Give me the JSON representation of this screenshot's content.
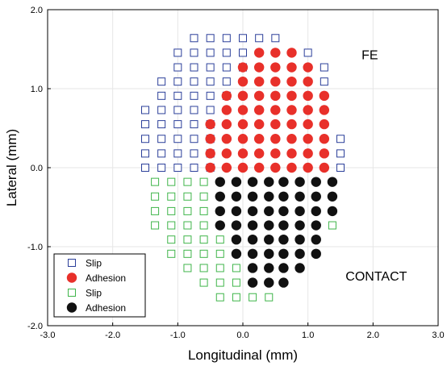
{
  "chart_data": {
    "type": "scatter",
    "title": "",
    "xlabel": "Longitudinal (mm)",
    "ylabel": "Lateral (mm)",
    "xlim": [
      -3.0,
      3.0
    ],
    "ylim": [
      -2.0,
      2.0
    ],
    "xticks": [
      "-3.0",
      "-2.0",
      "-1.0",
      "0.0",
      "1.0",
      "2.0",
      "3.0"
    ],
    "yticks": [
      "-2.0",
      "-1.0",
      "0.0",
      "1.0",
      "2.0"
    ],
    "grid": true,
    "legend_position": "bottom-left",
    "annotations": [
      {
        "text": "FE",
        "x": 1.95,
        "y": 1.37
      },
      {
        "text": "CONTACT",
        "x": 2.05,
        "y": -1.43
      }
    ],
    "series": [
      {
        "name": "Slip",
        "marker": "open-square",
        "color": "#2b3f9a",
        "rows": [
          {
            "y": 1.64,
            "x": [
              -0.75,
              -0.5,
              -0.25,
              0.0,
              0.25,
              0.5
            ]
          },
          {
            "y": 1.455,
            "x": [
              -1.0,
              -0.75,
              -0.5,
              -0.25,
              0.0,
              1.0
            ]
          },
          {
            "y": 1.27,
            "x": [
              -1.0,
              -0.75,
              -0.5,
              -0.25,
              0.0,
              1.25
            ]
          },
          {
            "y": 1.09,
            "x": [
              -1.25,
              -1.0,
              -0.75,
              -0.5,
              -0.25,
              1.25
            ]
          },
          {
            "y": 0.91,
            "x": [
              -1.25,
              -1.0,
              -0.75,
              -0.5,
              -0.25
            ]
          },
          {
            "y": 0.73,
            "x": [
              -1.5,
              -1.25,
              -1.0,
              -0.75,
              -0.5
            ]
          },
          {
            "y": 0.55,
            "x": [
              -1.5,
              -1.25,
              -1.0,
              -0.75,
              -0.5
            ]
          },
          {
            "y": 0.365,
            "x": [
              -1.5,
              -1.25,
              -1.0,
              -0.75,
              -0.5,
              1.5
            ]
          },
          {
            "y": 0.18,
            "x": [
              -1.5,
              -1.25,
              -1.0,
              -0.75,
              -0.5,
              1.5
            ]
          },
          {
            "y": 0.0,
            "x": [
              -1.5,
              -1.25,
              -1.0,
              -0.75,
              -0.5,
              1.5
            ]
          }
        ]
      },
      {
        "name": "Adhesion",
        "marker": "filled-circle",
        "color": "#e8302a",
        "rows": [
          {
            "y": 1.455,
            "x": [
              0.25,
              0.5,
              0.75
            ]
          },
          {
            "y": 1.27,
            "x": [
              0.0,
              0.25,
              0.5,
              0.75,
              1.0
            ]
          },
          {
            "y": 1.09,
            "x": [
              0.0,
              0.25,
              0.5,
              0.75,
              1.0
            ]
          },
          {
            "y": 0.91,
            "x": [
              -0.25,
              0.0,
              0.25,
              0.5,
              0.75,
              1.0,
              1.25
            ]
          },
          {
            "y": 0.73,
            "x": [
              -0.25,
              0.0,
              0.25,
              0.5,
              0.75,
              1.0,
              1.25
            ]
          },
          {
            "y": 0.55,
            "x": [
              -0.5,
              -0.25,
              0.0,
              0.25,
              0.5,
              0.75,
              1.0,
              1.25
            ]
          },
          {
            "y": 0.365,
            "x": [
              -0.5,
              -0.25,
              0.0,
              0.25,
              0.5,
              0.75,
              1.0,
              1.25
            ]
          },
          {
            "y": 0.18,
            "x": [
              -0.5,
              -0.25,
              0.0,
              0.25,
              0.5,
              0.75,
              1.0,
              1.25
            ]
          },
          {
            "y": 0.0,
            "x": [
              -0.5,
              -0.25,
              0.0,
              0.25,
              0.5,
              0.75,
              1.0,
              1.25
            ]
          }
        ]
      },
      {
        "name": "Slip",
        "marker": "open-square",
        "color": "#3fb54a",
        "rows": [
          {
            "y": -0.18,
            "x": [
              -1.35,
              -1.1,
              -0.85,
              -0.6
            ]
          },
          {
            "y": -0.365,
            "x": [
              -1.35,
              -1.1,
              -0.85,
              -0.6
            ]
          },
          {
            "y": -0.55,
            "x": [
              -1.35,
              -1.1,
              -0.85,
              -0.6
            ]
          },
          {
            "y": -0.73,
            "x": [
              -1.35,
              -1.1,
              -0.85,
              -0.6,
              1.375
            ]
          },
          {
            "y": -0.91,
            "x": [
              -1.1,
              -0.85,
              -0.6,
              -0.35
            ]
          },
          {
            "y": -1.09,
            "x": [
              -1.1,
              -0.85,
              -0.6,
              -0.35
            ]
          },
          {
            "y": -1.27,
            "x": [
              -0.85,
              -0.6,
              -0.35,
              -0.1
            ]
          },
          {
            "y": -1.455,
            "x": [
              -0.6,
              -0.35,
              -0.1
            ]
          },
          {
            "y": -1.64,
            "x": [
              -0.35,
              -0.1,
              0.15,
              0.4
            ]
          }
        ]
      },
      {
        "name": "Adhesion",
        "marker": "filled-circle",
        "color": "#111111",
        "rows": [
          {
            "y": -0.18,
            "x": [
              -0.35,
              -0.1,
              0.15,
              0.4,
              0.625,
              0.875,
              1.125,
              1.375
            ]
          },
          {
            "y": -0.365,
            "x": [
              -0.35,
              -0.1,
              0.15,
              0.4,
              0.625,
              0.875,
              1.125,
              1.375
            ]
          },
          {
            "y": -0.55,
            "x": [
              -0.35,
              -0.1,
              0.15,
              0.4,
              0.625,
              0.875,
              1.125,
              1.375
            ]
          },
          {
            "y": -0.73,
            "x": [
              -0.35,
              -0.1,
              0.15,
              0.4,
              0.625,
              0.875,
              1.125
            ]
          },
          {
            "y": -0.91,
            "x": [
              -0.1,
              0.15,
              0.4,
              0.625,
              0.875,
              1.125
            ]
          },
          {
            "y": -1.09,
            "x": [
              -0.1,
              0.15,
              0.4,
              0.625,
              0.875,
              1.125
            ]
          },
          {
            "y": -1.27,
            "x": [
              0.15,
              0.4,
              0.625,
              0.875
            ]
          },
          {
            "y": -1.455,
            "x": [
              0.15,
              0.4,
              0.625
            ]
          }
        ]
      }
    ]
  }
}
